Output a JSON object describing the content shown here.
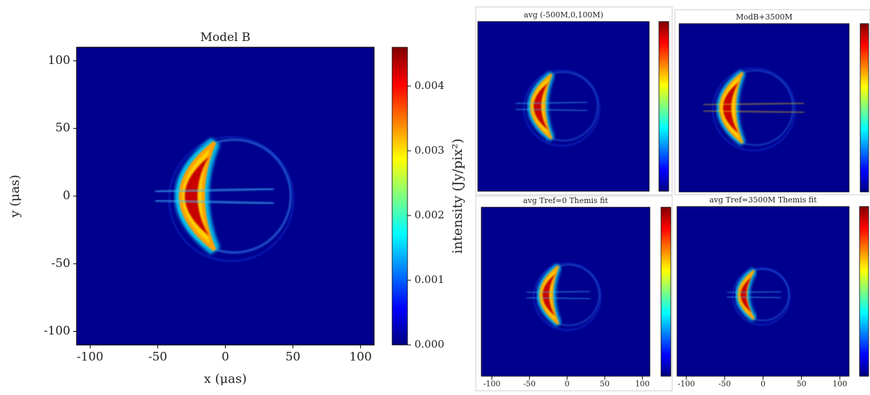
{
  "chart_data": [
    {
      "type": "image",
      "title": "Model B",
      "xlabel": "x (μas)",
      "ylabel": "y (μas)",
      "xlim": [
        -110,
        110
      ],
      "ylim": [
        -110,
        110
      ],
      "xticks": [
        -100,
        -50,
        0,
        50,
        100
      ],
      "yticks": [
        -100,
        -50,
        0,
        50,
        100
      ],
      "colorbar_label": "intensity (Jy/pix²)",
      "clim": [
        0,
        0.0046
      ],
      "cticks": [
        {
          "value": 0,
          "label": "0.000"
        },
        {
          "value": 0.001,
          "label": "0.001"
        },
        {
          "value": 0.002,
          "label": "0.002"
        },
        {
          "value": 0.003,
          "label": "0.003"
        },
        {
          "value": 0.004,
          "label": "0.004"
        }
      ],
      "colormap": "jet"
    },
    {
      "type": "image",
      "title": "avg (-500M,0,100M)",
      "colormap": "jet"
    },
    {
      "type": "image",
      "title": "ModB+3500M",
      "colormap": "jet"
    },
    {
      "type": "image",
      "title": "avg Tref=0 Themis fit",
      "xlim": [
        -114,
        110
      ],
      "xticks": [
        -100,
        -50,
        0,
        50,
        100
      ],
      "colormap": "jet"
    },
    {
      "type": "image",
      "title": "avg Tref=3500M Themis fit",
      "xlim": [
        -112,
        112
      ],
      "xticks": [
        -100,
        -50,
        0,
        50,
        100
      ],
      "colormap": "jet"
    }
  ]
}
